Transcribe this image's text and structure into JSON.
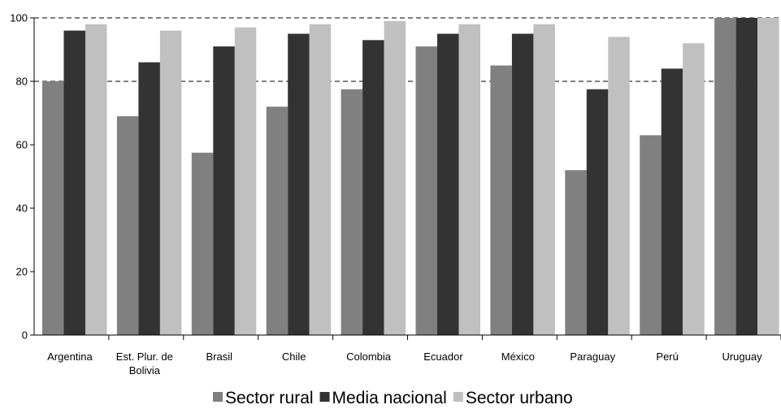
{
  "chart_data": {
    "type": "bar",
    "title": "",
    "xlabel": "",
    "ylabel": "",
    "ylim": [
      0,
      100
    ],
    "yticks": [
      0,
      20,
      40,
      60,
      80,
      100
    ],
    "grid": "horizontal dashed lines at 80 and 100",
    "legend_position": "bottom",
    "categories": [
      [
        "Argentina"
      ],
      [
        "Est. Plur. de",
        "Bolivia"
      ],
      [
        "Brasil"
      ],
      [
        "Chile"
      ],
      [
        "Colombia"
      ],
      [
        "Ecuador"
      ],
      [
        "México"
      ],
      [
        "Paraguay"
      ],
      [
        "Perú"
      ],
      [
        "Uruguay"
      ]
    ],
    "series": [
      {
        "name": "Sector rural",
        "color": "#808080",
        "values": [
          80,
          69,
          57.5,
          72,
          77.5,
          91,
          85,
          52,
          63,
          100
        ]
      },
      {
        "name": "Media nacional",
        "color": "#333333",
        "values": [
          96,
          86,
          91,
          95,
          93,
          95,
          95,
          77.5,
          84,
          100
        ]
      },
      {
        "name": "Sector urbano",
        "color": "#c0c0c0",
        "values": [
          98,
          96,
          97,
          98,
          99,
          98,
          98,
          94,
          92,
          100
        ]
      }
    ]
  }
}
